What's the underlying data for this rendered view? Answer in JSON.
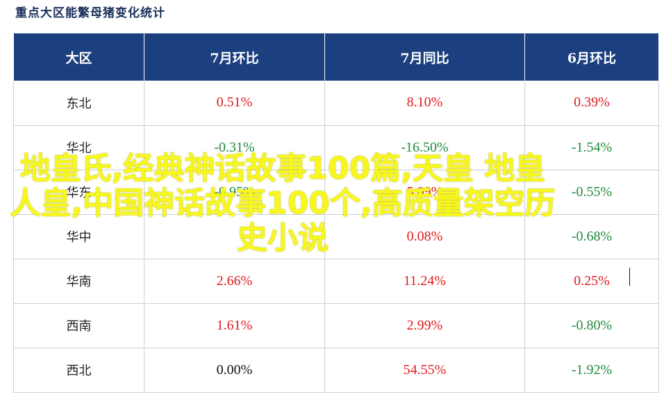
{
  "title": "重点大区能繁母猪变化统计",
  "chart_data": {
    "type": "table",
    "columns": [
      "大区",
      "7月环比",
      "7月同比",
      "6月环比"
    ],
    "rows": [
      {
        "region": "东北",
        "mom_jul": "0.51%",
        "yoy_jul": "8.10%",
        "mom_jun": "0.39%"
      },
      {
        "region": "华北",
        "mom_jul": "-0.31%",
        "yoy_jul": "-16.50%",
        "mom_jun": "-1.54%"
      },
      {
        "region": "华东",
        "mom_jul": "-0.95%",
        "yoy_jul": "5.09%",
        "mom_jun": "-0.55%"
      },
      {
        "region": "华中",
        "mom_jul": "",
        "yoy_jul": "0.08%",
        "mom_jun": "-0.68%"
      },
      {
        "region": "华南",
        "mom_jul": "2.66%",
        "yoy_jul": "11.24%",
        "mom_jun": "0.25%"
      },
      {
        "region": "西南",
        "mom_jul": "1.61%",
        "yoy_jul": "2.99%",
        "mom_jun": "-0.80%"
      },
      {
        "region": "西北",
        "mom_jul": "0.00%",
        "yoy_jul": "54.55%",
        "mom_jun": "-1.92%"
      }
    ]
  },
  "overlay_text": "地皇氏,经典神话故事100篇,天皇 地皇 人皇,中国神话故事100个,高质量架空历史小说",
  "colors": {
    "header_bg": "#1b3f7f",
    "positive": "#e0191c",
    "negative": "#1f8a3a",
    "overlay": "#f7f71c"
  }
}
